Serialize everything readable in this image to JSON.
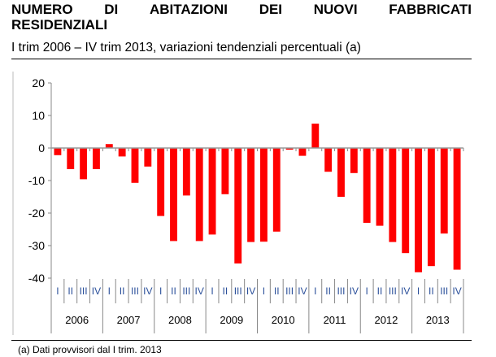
{
  "title_words": [
    "NUMERO",
    "DI",
    "ABITAZIONI",
    "DEI",
    "NUOVI",
    "FABBRICATI"
  ],
  "title_line2": "RESIDENZIALI",
  "subtitle": "I trim 2006 – IV trim 2013, variazioni tendenziali percentuali (a)",
  "footnote": "(a)  Dati provvisori dal I trim. 2013",
  "chart_data": {
    "type": "bar",
    "years": [
      "2006",
      "2007",
      "2008",
      "2009",
      "2010",
      "2011",
      "2012",
      "2013"
    ],
    "quarters": [
      "I",
      "II",
      "III",
      "IV"
    ],
    "values": [
      -2.2,
      -6.5,
      -9.6,
      -6.5,
      1.2,
      -2.6,
      -10.7,
      -5.7,
      -20.9,
      -28.6,
      -14.6,
      -28.6,
      -26.6,
      -14.2,
      -35.5,
      -28.9,
      -28.8,
      -25.7,
      -0.5,
      -2.4,
      7.5,
      -7.3,
      -15.0,
      -7.7,
      -23.0,
      -23.9,
      -28.9,
      -32.3,
      -38.2,
      -36.3,
      -26.3,
      -37.4
    ],
    "yticks": [
      "20",
      "10",
      "0",
      "-10",
      "-20",
      "-30",
      "-40"
    ],
    "ylim": [
      -40,
      20
    ],
    "bar_color": "#ff0000",
    "grid": false
  }
}
